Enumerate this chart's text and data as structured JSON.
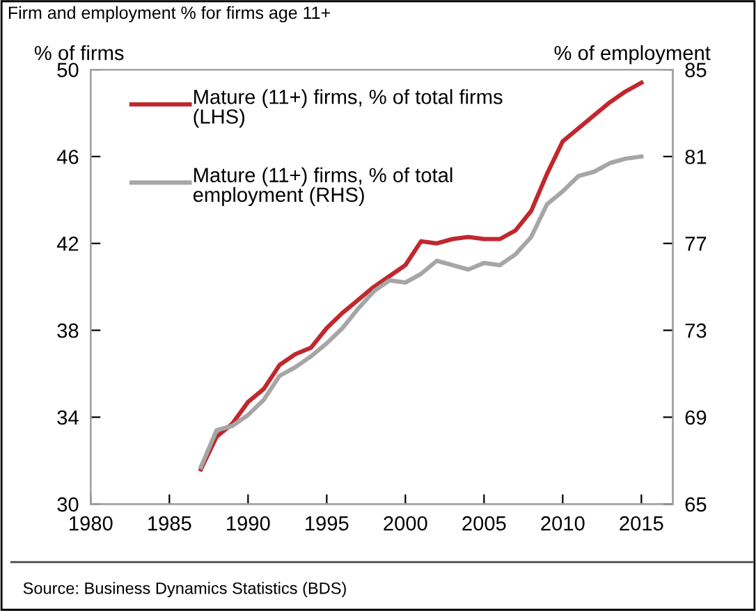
{
  "chart_data": {
    "type": "line",
    "title": "Firm and employment % for firms age 11+",
    "ylabel": "% of firms",
    "y2label": "% of employment",
    "x": [
      1987,
      1988,
      1989,
      1990,
      1991,
      1992,
      1993,
      1994,
      1995,
      1996,
      1997,
      1998,
      1999,
      2000,
      2001,
      2002,
      2003,
      2004,
      2005,
      2006,
      2007,
      2008,
      2009,
      2010,
      2011,
      2012,
      2013,
      2014,
      2015
    ],
    "series": [
      {
        "name": "Mature (11+) firms, % of total firms (LHS)",
        "color": "#c0282d",
        "values": [
          31.6,
          33.1,
          33.7,
          34.7,
          35.3,
          36.4,
          36.9,
          37.2,
          38.1,
          38.8,
          39.4,
          40.0,
          40.5,
          41.0,
          42.1,
          42.0,
          42.2,
          42.3,
          42.2,
          42.2,
          42.6,
          43.5,
          45.2,
          46.7,
          47.3,
          47.9,
          48.5,
          49.0,
          49.4
        ]
      },
      {
        "name": "Mature (11+) firms, % of total employment (RHS)",
        "color": "#a6a6a6",
        "axis": "y2",
        "values": [
          66.7,
          68.4,
          68.6,
          69.1,
          69.8,
          70.9,
          71.3,
          71.8,
          72.4,
          73.1,
          74.0,
          74.8,
          75.3,
          75.2,
          75.6,
          76.2,
          76.0,
          75.8,
          76.1,
          76.0,
          76.5,
          77.3,
          78.8,
          79.4,
          80.1,
          80.3,
          80.7,
          80.9,
          81.0
        ]
      }
    ],
    "xlim": [
      1980,
      2017
    ],
    "xticks": [
      1980,
      1985,
      1990,
      1995,
      2000,
      2005,
      2010,
      2015
    ],
    "ylim": [
      30,
      50
    ],
    "yticks": [
      30,
      34,
      38,
      42,
      46,
      50
    ],
    "y2lim": [
      65,
      85
    ],
    "y2ticks": [
      65,
      69,
      73,
      77,
      81,
      85
    ],
    "grid": false,
    "legend": "top left",
    "marker": "none",
    "line_style": "solid",
    "annotations": [
      "Source: Business Dynamics Statistics (BDS)"
    ]
  }
}
